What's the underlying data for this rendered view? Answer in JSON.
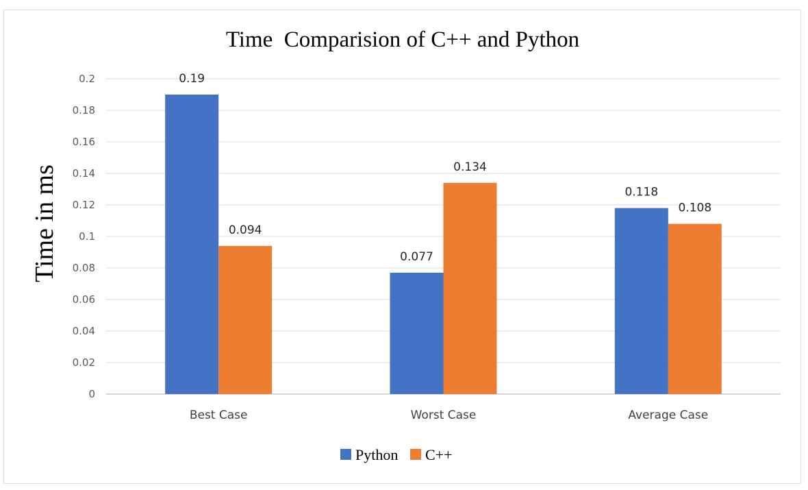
{
  "chart_data": {
    "type": "bar",
    "title": "Time  Comparision of C++ and Python",
    "xlabel": "",
    "ylabel": "Time in ms",
    "categories": [
      "Best Case",
      "Worst Case",
      "Average Case"
    ],
    "series": [
      {
        "name": "Python",
        "color": "#4472c4",
        "values": [
          0.19,
          0.077,
          0.118
        ],
        "labels": [
          "0.19",
          "0.077",
          "0.118"
        ]
      },
      {
        "name": "C++",
        "color": "#ed7d31",
        "values": [
          0.094,
          0.134,
          0.108
        ],
        "labels": [
          "0.094",
          "0.134",
          "0.108"
        ]
      }
    ],
    "ylim": [
      0,
      0.2
    ],
    "yticks": [
      0,
      0.02,
      0.04,
      0.06,
      0.08,
      0.1,
      0.12,
      0.14,
      0.16,
      0.18,
      0.2
    ],
    "yticklabels": [
      "0",
      "0.02",
      "0.04",
      "0.06",
      "0.08",
      "0.1",
      "0.12",
      "0.14",
      "0.16",
      "0.18",
      "0.2"
    ],
    "grid": true,
    "legend": "bottom"
  }
}
